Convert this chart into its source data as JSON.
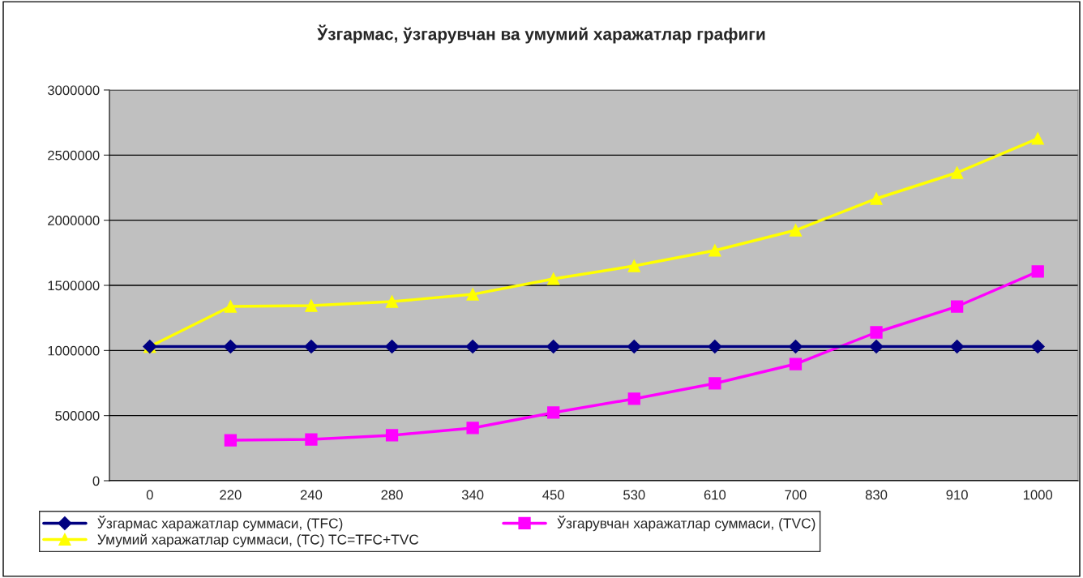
{
  "chart_data": {
    "type": "line",
    "title": "Ўзгармас, ўзгарувчан ва умумий харажатлар графиги",
    "categories": [
      "0",
      "220",
      "240",
      "280",
      "340",
      "450",
      "530",
      "610",
      "700",
      "830",
      "910",
      "1000"
    ],
    "series": [
      {
        "name": "Ўзгармас харажатлар суммаси, (TFC)",
        "color": "#000080",
        "marker": "diamond",
        "values": [
          1030000,
          1030000,
          1030000,
          1030000,
          1030000,
          1030000,
          1030000,
          1030000,
          1030000,
          1030000,
          1030000,
          1030000
        ]
      },
      {
        "name": "Ўзгарувчан харажатлар суммаси, (TVC)",
        "color": "#ff00ff",
        "marker": "square",
        "values": [
          null,
          311000,
          317000,
          349000,
          405000,
          523000,
          629000,
          747000,
          896000,
          1139000,
          1338000,
          1606000
        ]
      },
      {
        "name": "Умумий харажатлар суммаси, (TC) TC=TFC+TVC",
        "color": "#ffff00",
        "marker": "triangle",
        "values": [
          1030000,
          1338000,
          1344000,
          1375000,
          1431000,
          1550000,
          1649000,
          1768000,
          1923000,
          2166000,
          2365000,
          2627000
        ]
      }
    ],
    "ylim": [
      0,
      3000000
    ],
    "yticks": [
      0,
      500000,
      1000000,
      1500000,
      2000000,
      2500000,
      3000000
    ],
    "grid": "y",
    "legend": "bottom",
    "line_style": "solid"
  }
}
